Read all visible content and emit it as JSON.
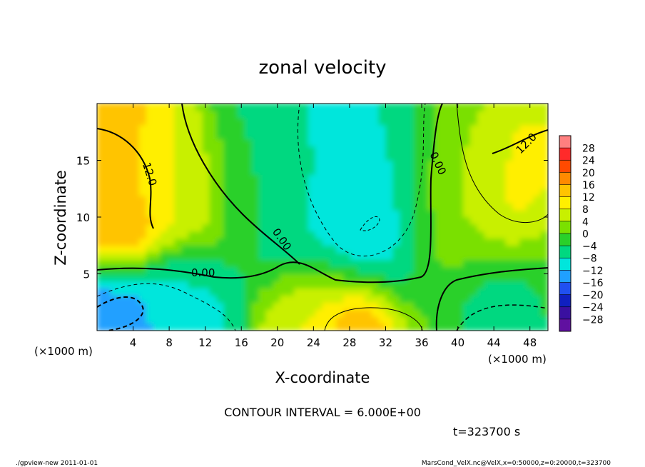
{
  "chart_data": {
    "type": "heatmap",
    "title": "zonal velocity",
    "xlabel": "X-coordinate",
    "ylabel": "Z-coordinate",
    "x_unit_label": "(×1000 m)",
    "z_unit_label": "(×1000 m)",
    "xlim": [
      0,
      50
    ],
    "ylim": [
      0,
      20
    ],
    "x_ticks": [
      4,
      8,
      12,
      16,
      20,
      24,
      28,
      32,
      36,
      40,
      44,
      48
    ],
    "y_ticks": [
      5,
      10,
      15
    ],
    "colorbar": {
      "ticks": [
        28,
        24,
        20,
        16,
        12,
        8,
        4,
        0,
        -4,
        -8,
        -12,
        -16,
        -20,
        -24,
        -28
      ],
      "colors": [
        "#ff8080",
        "#ff2a2a",
        "#ff4a00",
        "#ff8a00",
        "#ffc400",
        "#ffef00",
        "#c8f000",
        "#7ae000",
        "#2ad02a",
        "#00d880",
        "#00e6dc",
        "#20a0ff",
        "#2050f0",
        "#1020c0",
        "#3a10a0",
        "#6010a0"
      ]
    },
    "contour_labels": [
      "12.0",
      "0.00",
      "0.00",
      "0.00",
      "12.0"
    ],
    "contour_interval_text": "CONTOUR INTERVAL = 6.000E+00",
    "time_text": "t=323700 s",
    "field_blobs": [
      {
        "x": 45,
        "z": 10,
        "r": 14,
        "u": 2
      },
      {
        "x": 2,
        "z": 15,
        "r": 4.5,
        "u": 14
      },
      {
        "x": 3,
        "z": 9,
        "r": 3.5,
        "u": 17
      },
      {
        "x": 8,
        "z": 13,
        "r": 5,
        "u": 7
      },
      {
        "x": 48,
        "z": 15,
        "r": 4.5,
        "u": 14
      },
      {
        "x": 46,
        "z": 10.5,
        "r": 3,
        "u": 12
      },
      {
        "x": 42,
        "z": 12,
        "r": 5,
        "u": 6
      },
      {
        "x": 28,
        "z": 13,
        "r": 7,
        "u": -12
      },
      {
        "x": 30,
        "z": 8,
        "r": 5,
        "u": -13
      },
      {
        "x": 26,
        "z": 17,
        "r": 7,
        "u": -9
      },
      {
        "x": 20,
        "z": 14,
        "r": 6,
        "u": -2
      },
      {
        "x": 3,
        "z": 2,
        "r": 4,
        "u": -14
      },
      {
        "x": 9,
        "z": 2.5,
        "r": 4,
        "u": -8
      },
      {
        "x": 45,
        "z": 1.5,
        "r": 5,
        "u": -12
      },
      {
        "x": 29,
        "z": 1,
        "r": 3.5,
        "u": 22
      },
      {
        "x": 25,
        "z": 2,
        "r": 4,
        "u": 8
      }
    ]
  },
  "footer": {
    "left": "./gpview-new   2011-01-01",
    "right": "MarsCond_VelX.nc@VelX,x=0:50000,z=0:20000,t=323700"
  }
}
